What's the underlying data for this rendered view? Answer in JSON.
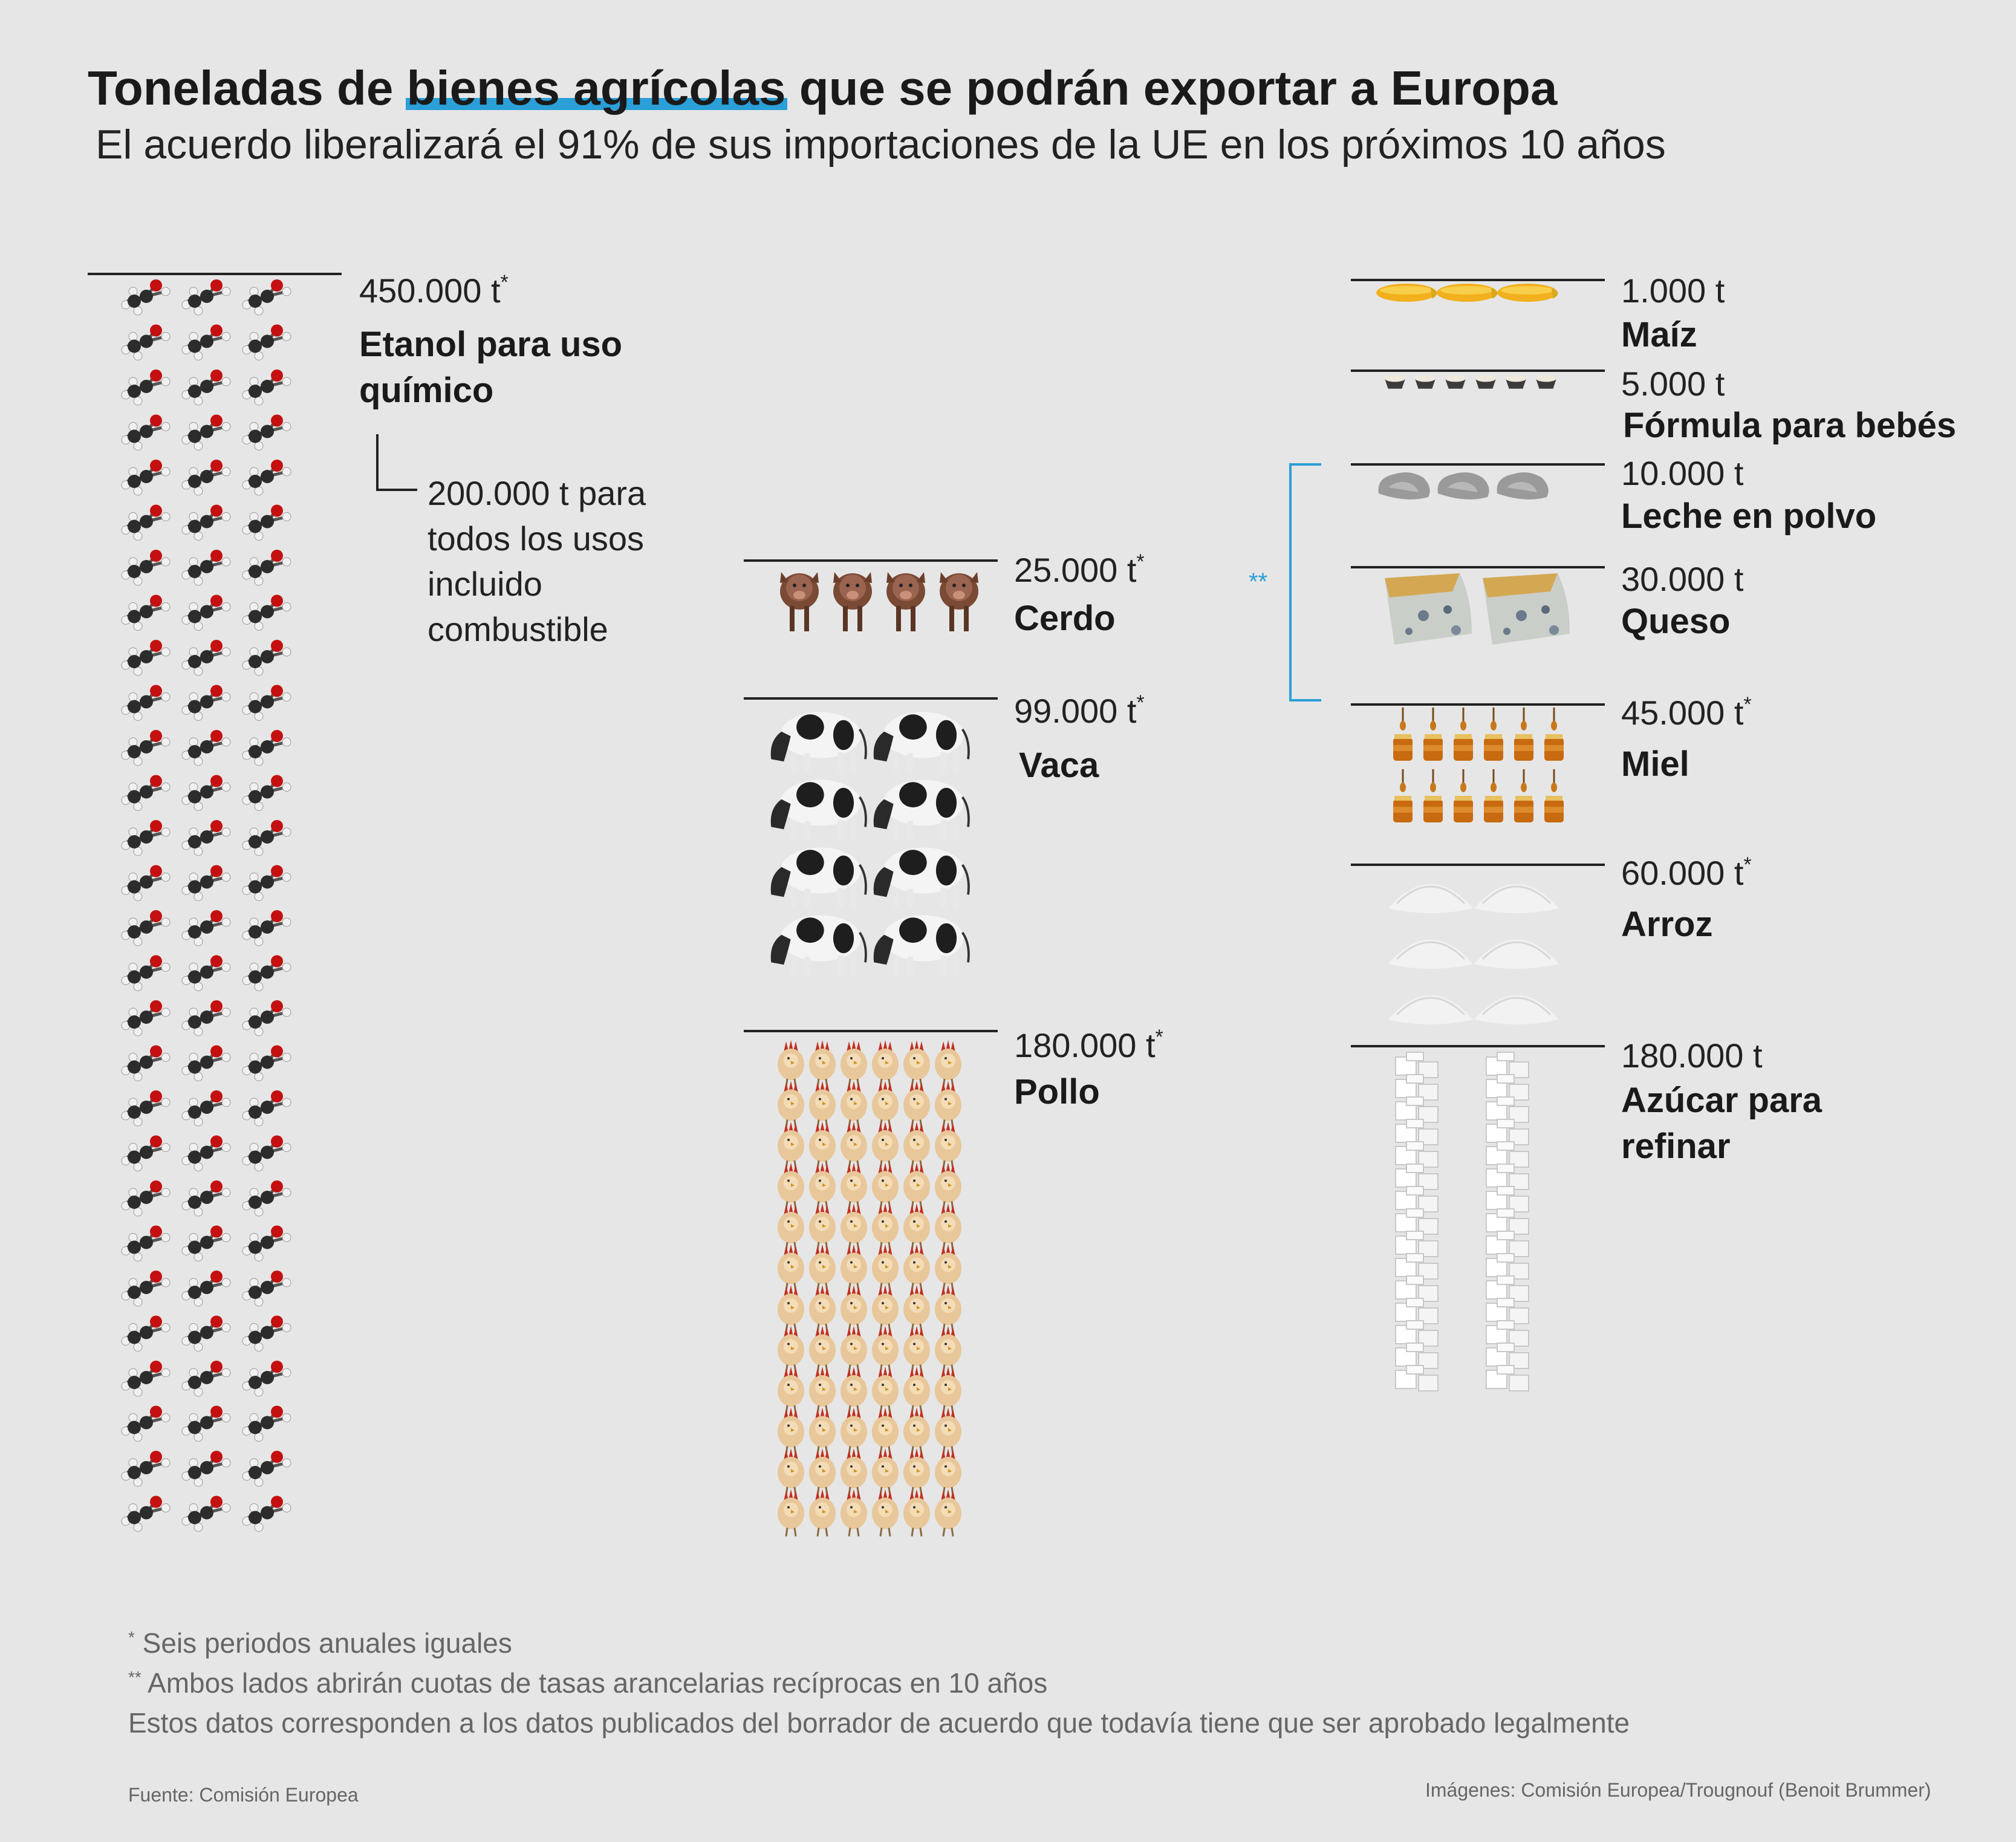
{
  "title_before": "Toneladas de ",
  "title_highlight": "bienes agrícolas",
  "title_after": " que se podrán exportar a Europa",
  "subtitle": "El acuerdo liberalizará el 91% de sus importaciones de la UE en los próximos 10 años",
  "ethanol_note": [
    "200.000 t para",
    "todos los usos",
    "incluido",
    "combustible"
  ],
  "bracket_marker": "**",
  "footnotes": {
    "star_mark": "*",
    "star_text": " Seis periodos anuales iguales",
    "double_star_mark": "**",
    "double_star_text": " Ambos lados abrirán cuotas de tasas arancelarias recíprocas en 10 años",
    "disclaimer": "Estos datos corresponden a los datos publicados del borrador de acuerdo que todavía tiene que ser aprobado legalmente"
  },
  "source": "Fuente: Comisión Europea",
  "image_credit": "Imágenes: Comisión Europea/Trougnouf (Benoit Brummer)",
  "colors": {
    "accent": "#2a9fd8",
    "background": "#e6e6e6",
    "text": "#222222"
  },
  "chart_data": {
    "type": "pictograph",
    "unit": "t",
    "items": [
      {
        "id": "etanol",
        "amount_text": "450.000 t",
        "value": 450000,
        "annual_periods_mark": "*",
        "label": [
          "Etanol para uso",
          "químico"
        ],
        "icon": "ethanol-molecule-icon"
      },
      {
        "id": "cerdo",
        "amount_text": "25.000 t",
        "value": 25000,
        "annual_periods_mark": "*",
        "label": [
          "Cerdo"
        ],
        "icon": "pig-icon"
      },
      {
        "id": "vaca",
        "amount_text": "99.000 t",
        "value": 99000,
        "annual_periods_mark": "*",
        "label": [
          "Vaca"
        ],
        "icon": "cow-icon"
      },
      {
        "id": "pollo",
        "amount_text": "180.000 t",
        "value": 180000,
        "annual_periods_mark": "*",
        "label": [
          "Pollo"
        ],
        "icon": "chicken-icon"
      },
      {
        "id": "maiz",
        "amount_text": "1.000 t",
        "value": 1000,
        "annual_periods_mark": "",
        "label": [
          "Maíz"
        ],
        "icon": "corn-icon"
      },
      {
        "id": "formula",
        "amount_text": "5.000 t",
        "value": 5000,
        "annual_periods_mark": "",
        "label": [
          "Fórmula para bebés"
        ],
        "icon": "formula-cup-icon"
      },
      {
        "id": "leche",
        "amount_text": "10.000 t",
        "value": 10000,
        "annual_periods_mark": "",
        "label": [
          "Leche en polvo"
        ],
        "icon": "milk-powder-icon"
      },
      {
        "id": "queso",
        "amount_text": "30.000 t",
        "value": 30000,
        "annual_periods_mark": "",
        "label": [
          "Queso"
        ],
        "icon": "cheese-icon"
      },
      {
        "id": "miel",
        "amount_text": "45.000 t",
        "value": 45000,
        "annual_periods_mark": "*",
        "label": [
          "Miel"
        ],
        "icon": "honey-jar-icon"
      },
      {
        "id": "arroz",
        "amount_text": "60.000 t",
        "value": 60000,
        "annual_periods_mark": "*",
        "label": [
          "Arroz"
        ],
        "icon": "rice-pile-icon"
      },
      {
        "id": "azucar",
        "amount_text": "180.000 t",
        "value": 180000,
        "annual_periods_mark": "",
        "label": [
          "Azúcar para",
          "refinar"
        ],
        "icon": "sugar-cube-icon"
      }
    ]
  }
}
